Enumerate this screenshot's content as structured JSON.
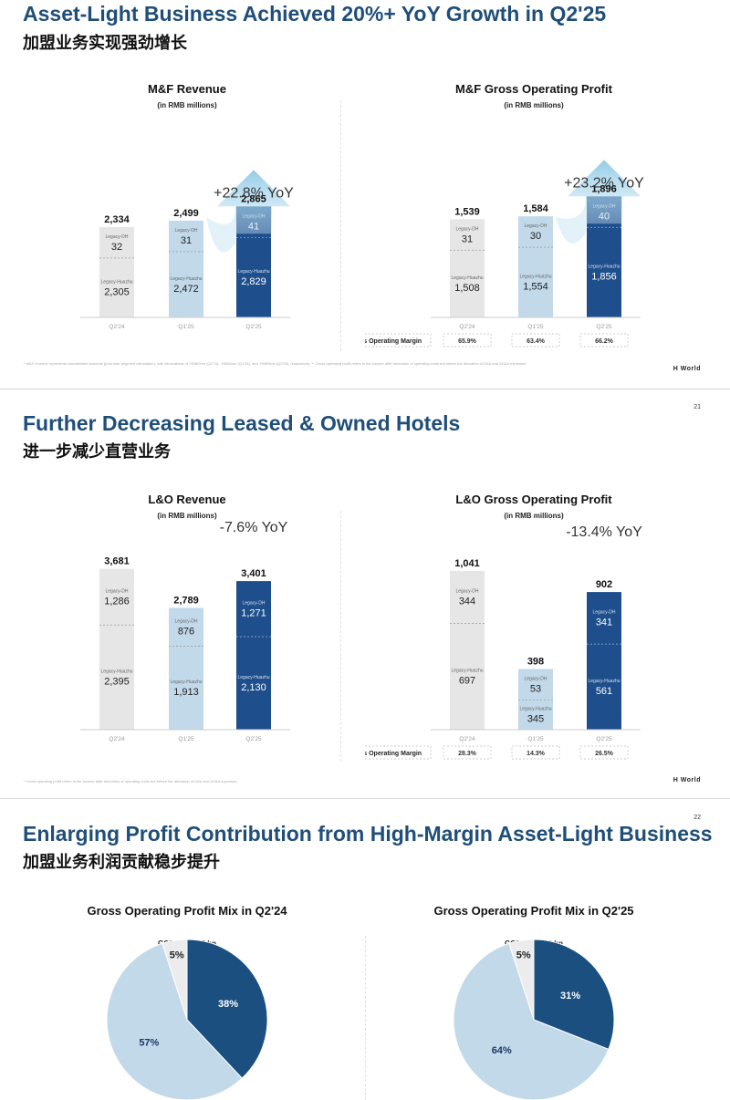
{
  "slides": [
    {
      "title": "Asset-Light Business Achieved 20%+ YoY Growth in Q2'25",
      "subtitle": "加盟业务实现强劲增长",
      "page_number": "",
      "brand": "H World",
      "footnote": "* M&F revenue represents consolidated amounts (post inter-segment elimination), with eliminations of -RMB2mn (Q2'24), -RMB4mn (Q1'25), and -RMB5mn (Q2'25), respectively. ** Gross operating profit refers to the income after deduction of operating costs but before the allocation of D&A and SG&A expenses."
    },
    {
      "title": "Further Decreasing Leased & Owned Hotels",
      "subtitle": "进一步减少直营业务",
      "page_number": "21",
      "brand": "H World",
      "footnote": "* Gross operating profit refers to the income after deduction of operating costs but before the allocation of D&A and SG&A expenses."
    },
    {
      "title": "Enlarging Profit Contribution from High-Margin Asset-Light Business",
      "subtitle": "加盟业务利润贡献稳步提升",
      "page_number": "22"
    }
  ],
  "chart_data": [
    {
      "id": "mf_revenue",
      "type": "bar",
      "title": "M&F Revenue",
      "unit": "(in RMB millions)",
      "categories": [
        "Q2'24",
        "Q1'25",
        "Q2'25"
      ],
      "totals": [
        "2,334",
        "2,499",
        "2,865"
      ],
      "series": [
        {
          "name": "Legacy-Huazhu",
          "values": [
            2305,
            2472,
            2829
          ],
          "labels": [
            "2,305",
            "2,472",
            "2,829"
          ]
        },
        {
          "name": "Legacy-DH",
          "values": [
            32,
            31,
            41
          ],
          "labels": [
            "32",
            "31",
            "41"
          ]
        }
      ],
      "annotation": "+22.8% YoY",
      "colors": [
        "#e6e6e6",
        "#c2d9ea",
        "#1f4e8c"
      ]
    },
    {
      "id": "mf_gop",
      "type": "bar",
      "title": "M&F Gross Operating Profit",
      "unit": "(in RMB millions)",
      "categories": [
        "Q2'24",
        "Q1'25",
        "Q2'25"
      ],
      "totals": [
        "1,539",
        "1,584",
        "1,896"
      ],
      "series": [
        {
          "name": "Legacy-Huazhu",
          "values": [
            1508,
            1554,
            1856
          ],
          "labels": [
            "1,508",
            "1,554",
            "1,856"
          ]
        },
        {
          "name": "Legacy-DH",
          "values": [
            31,
            30,
            40
          ],
          "labels": [
            "31",
            "30",
            "40"
          ]
        }
      ],
      "annotation": "+23.2% YoY",
      "margin_label": "Gross Operating Margin",
      "margins": [
        "65.9%",
        "63.4%",
        "66.2%"
      ],
      "colors": [
        "#e6e6e6",
        "#c2d9ea",
        "#1f4e8c"
      ]
    },
    {
      "id": "lo_revenue",
      "type": "bar",
      "title": "L&O Revenue",
      "unit": "(in RMB millions)",
      "categories": [
        "Q2'24",
        "Q1'25",
        "Q2'25"
      ],
      "totals": [
        "3,681",
        "2,789",
        "3,401"
      ],
      "series": [
        {
          "name": "Legacy-Huazhu",
          "values": [
            2395,
            1913,
            2130
          ],
          "labels": [
            "2,395",
            "1,913",
            "2,130"
          ]
        },
        {
          "name": "Legacy-DH",
          "values": [
            1286,
            876,
            1271
          ],
          "labels": [
            "1,286",
            "876",
            "1,271"
          ]
        }
      ],
      "annotation": "-7.6% YoY",
      "colors": [
        "#e6e6e6",
        "#c2d9ea",
        "#1f4e8c"
      ]
    },
    {
      "id": "lo_gop",
      "type": "bar",
      "title": "L&O Gross Operating Profit",
      "unit": "(in RMB millions)",
      "categories": [
        "Q2'24",
        "Q1'25",
        "Q2'25"
      ],
      "totals": [
        "1,041",
        "398",
        "902"
      ],
      "series": [
        {
          "name": "Legacy-Huazhu",
          "values": [
            697,
            345,
            561
          ],
          "labels": [
            "697",
            "345",
            "561"
          ]
        },
        {
          "name": "Legacy-DH",
          "values": [
            344,
            53,
            341
          ],
          "labels": [
            "344",
            "53",
            "341"
          ]
        }
      ],
      "annotation": "-13.4% YoY",
      "margin_label": "Gross Operating Margin",
      "margins": [
        "28.3%",
        "14.3%",
        "26.5%"
      ],
      "colors": [
        "#e6e6e6",
        "#c2d9ea",
        "#1f4e8c"
      ]
    },
    {
      "id": "gop_mix_q224",
      "type": "pie",
      "title": "Gross Operating Profit Mix in Q2'24",
      "subtitle": "GOP: RMB2.7 bn",
      "values": [
        38,
        57,
        5
      ],
      "labels": [
        "38%",
        "57%",
        "5%"
      ],
      "colors": [
        "#1a4f80",
        "#c2d9ea",
        "#ececec"
      ]
    },
    {
      "id": "gop_mix_q225",
      "type": "pie",
      "title": "Gross Operating Profit Mix in Q2'25",
      "subtitle": "GOP: RMB2.9 bn",
      "values": [
        31,
        64,
        5
      ],
      "labels": [
        "31%",
        "64%",
        "5%"
      ],
      "colors": [
        "#1a4f80",
        "#c2d9ea",
        "#ececec"
      ]
    }
  ]
}
